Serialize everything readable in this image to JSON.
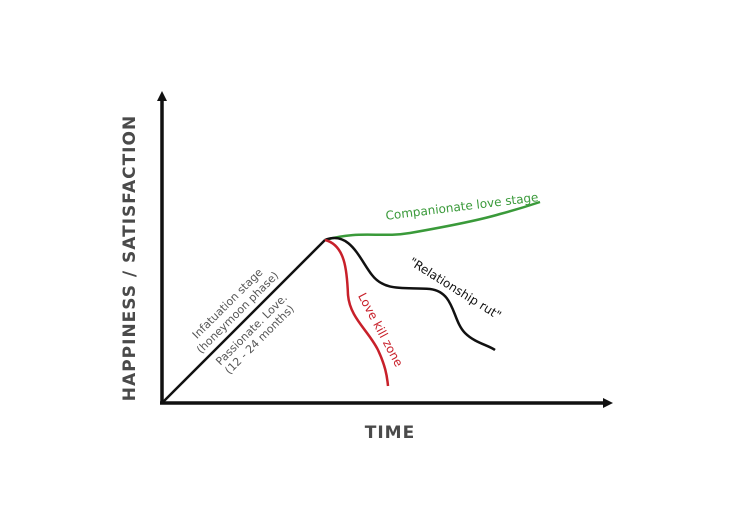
{
  "axes": {
    "y_label": "HAPPINESS / SATISFACTION",
    "x_label": "TIME"
  },
  "labels": {
    "infatuation": "Infatuation stage",
    "honeymoon": "(honeymoon phase)",
    "passionate": "Passionate. Love.",
    "duration": "(12 - 24 months)",
    "companionate": "Companionate love stage",
    "rut": "\"Relationship rut\"",
    "kill_zone": "Love kill zone"
  }
}
